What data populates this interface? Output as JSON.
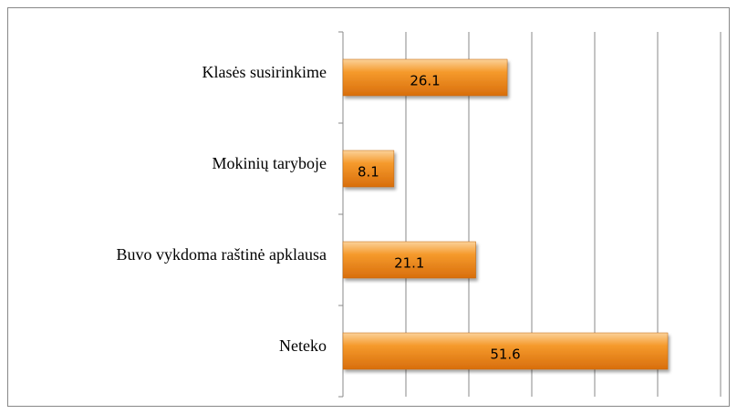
{
  "chart_data": {
    "type": "bar",
    "orientation": "horizontal",
    "categories": [
      "Klasės susirinkime",
      "Mokinių taryboje",
      "Buvo vykdoma raštinė apklausa",
      "Neteko"
    ],
    "values": [
      26.1,
      8.1,
      21.1,
      51.6
    ],
    "color": "#f0901e",
    "xlim": [
      0,
      60
    ],
    "xticks": [
      0,
      10,
      20,
      30,
      40,
      50,
      60
    ],
    "grid": true
  }
}
